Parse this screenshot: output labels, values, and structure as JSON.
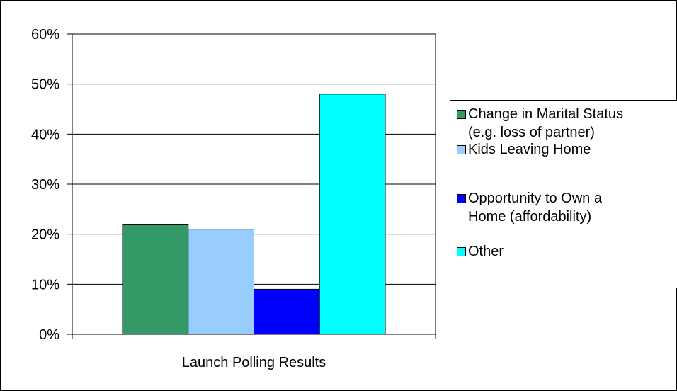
{
  "chart_data": {
    "type": "bar",
    "categories": [
      "Launch Polling Results"
    ],
    "series": [
      {
        "name": "Change in Marital Status (e.g. loss of partner)",
        "values": [
          0.22
        ],
        "color": "#339966"
      },
      {
        "name": "Kids Leaving Home",
        "values": [
          0.21
        ],
        "color": "#99CCFF"
      },
      {
        "name": "Opportunity to Own a Home (affordability)",
        "values": [
          0.09
        ],
        "color": "#0000FF"
      },
      {
        "name": "Other",
        "values": [
          0.48
        ],
        "color": "#00FFFF"
      }
    ],
    "yticks": [
      "0%",
      "10%",
      "20%",
      "30%",
      "40%",
      "50%",
      "60%"
    ],
    "ylim": [
      0,
      0.6
    ],
    "grid": true,
    "legend_position": "right",
    "title": "",
    "xlabel": "",
    "ylabel": ""
  },
  "legend": {
    "items": [
      {
        "line1": "Change in Marital Status",
        "line2": "(e.g. loss of partner)",
        "color": "#339966"
      },
      {
        "line1": "Kids Leaving Home",
        "line2": "",
        "color": "#99CCFF"
      },
      {
        "line1": "Opportunity to Own a",
        "line2": "Home (affordability)",
        "color": "#0000FF"
      },
      {
        "line1": "Other",
        "line2": "",
        "color": "#00FFFF"
      }
    ]
  }
}
